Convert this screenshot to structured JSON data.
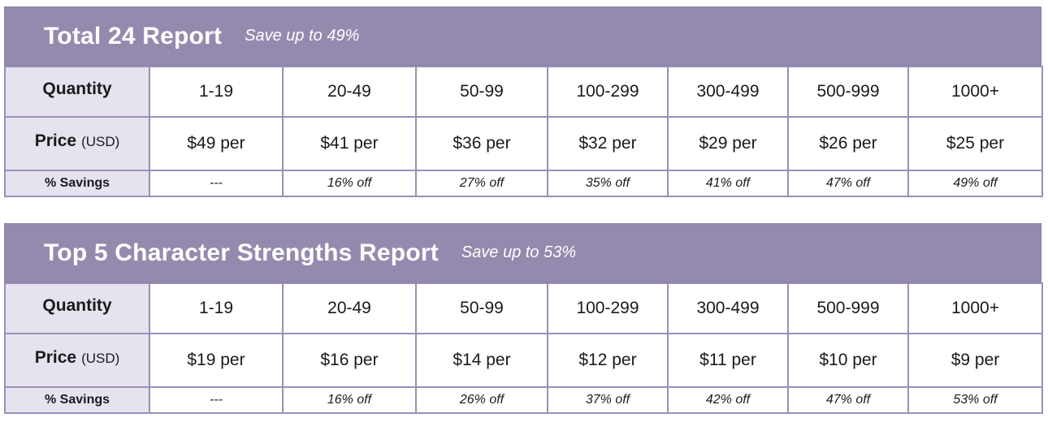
{
  "reports": [
    {
      "title": "Total 24 Report",
      "subtitle": "Save up to 49%",
      "row_labels": {
        "quantity": "Quantity",
        "price": "Price",
        "price_unit": "(USD)",
        "savings": "% Savings"
      },
      "tiers": [
        {
          "quantity": "1-19",
          "price": "$49 per",
          "savings": "---"
        },
        {
          "quantity": "20-49",
          "price": "$41 per",
          "savings": "16% off"
        },
        {
          "quantity": "50-99",
          "price": "$36 per",
          "savings": "27% off"
        },
        {
          "quantity": "100-299",
          "price": "$32 per",
          "savings": "35% off"
        },
        {
          "quantity": "300-499",
          "price": "$29 per",
          "savings": "41% off"
        },
        {
          "quantity": "500-999",
          "price": "$26 per",
          "savings": "47% off"
        },
        {
          "quantity": "1000+",
          "price": "$25 per",
          "savings": "49% off"
        }
      ]
    },
    {
      "title": "Top 5 Character Strengths Report",
      "subtitle": "Save up to 53%",
      "row_labels": {
        "quantity": "Quantity",
        "price": "Price",
        "price_unit": "(USD)",
        "savings": "% Savings"
      },
      "tiers": [
        {
          "quantity": "1-19",
          "price": "$19 per",
          "savings": "---"
        },
        {
          "quantity": "20-49",
          "price": "$16 per",
          "savings": "16% off"
        },
        {
          "quantity": "50-99",
          "price": "$14 per",
          "savings": "26% off"
        },
        {
          "quantity": "100-299",
          "price": "$12 per",
          "savings": "37% off"
        },
        {
          "quantity": "300-499",
          "price": "$11 per",
          "savings": "42% off"
        },
        {
          "quantity": "500-999",
          "price": "$10 per",
          "savings": "47% off"
        },
        {
          "quantity": "1000+",
          "price": "$9 per",
          "savings": "53% off"
        }
      ]
    }
  ]
}
